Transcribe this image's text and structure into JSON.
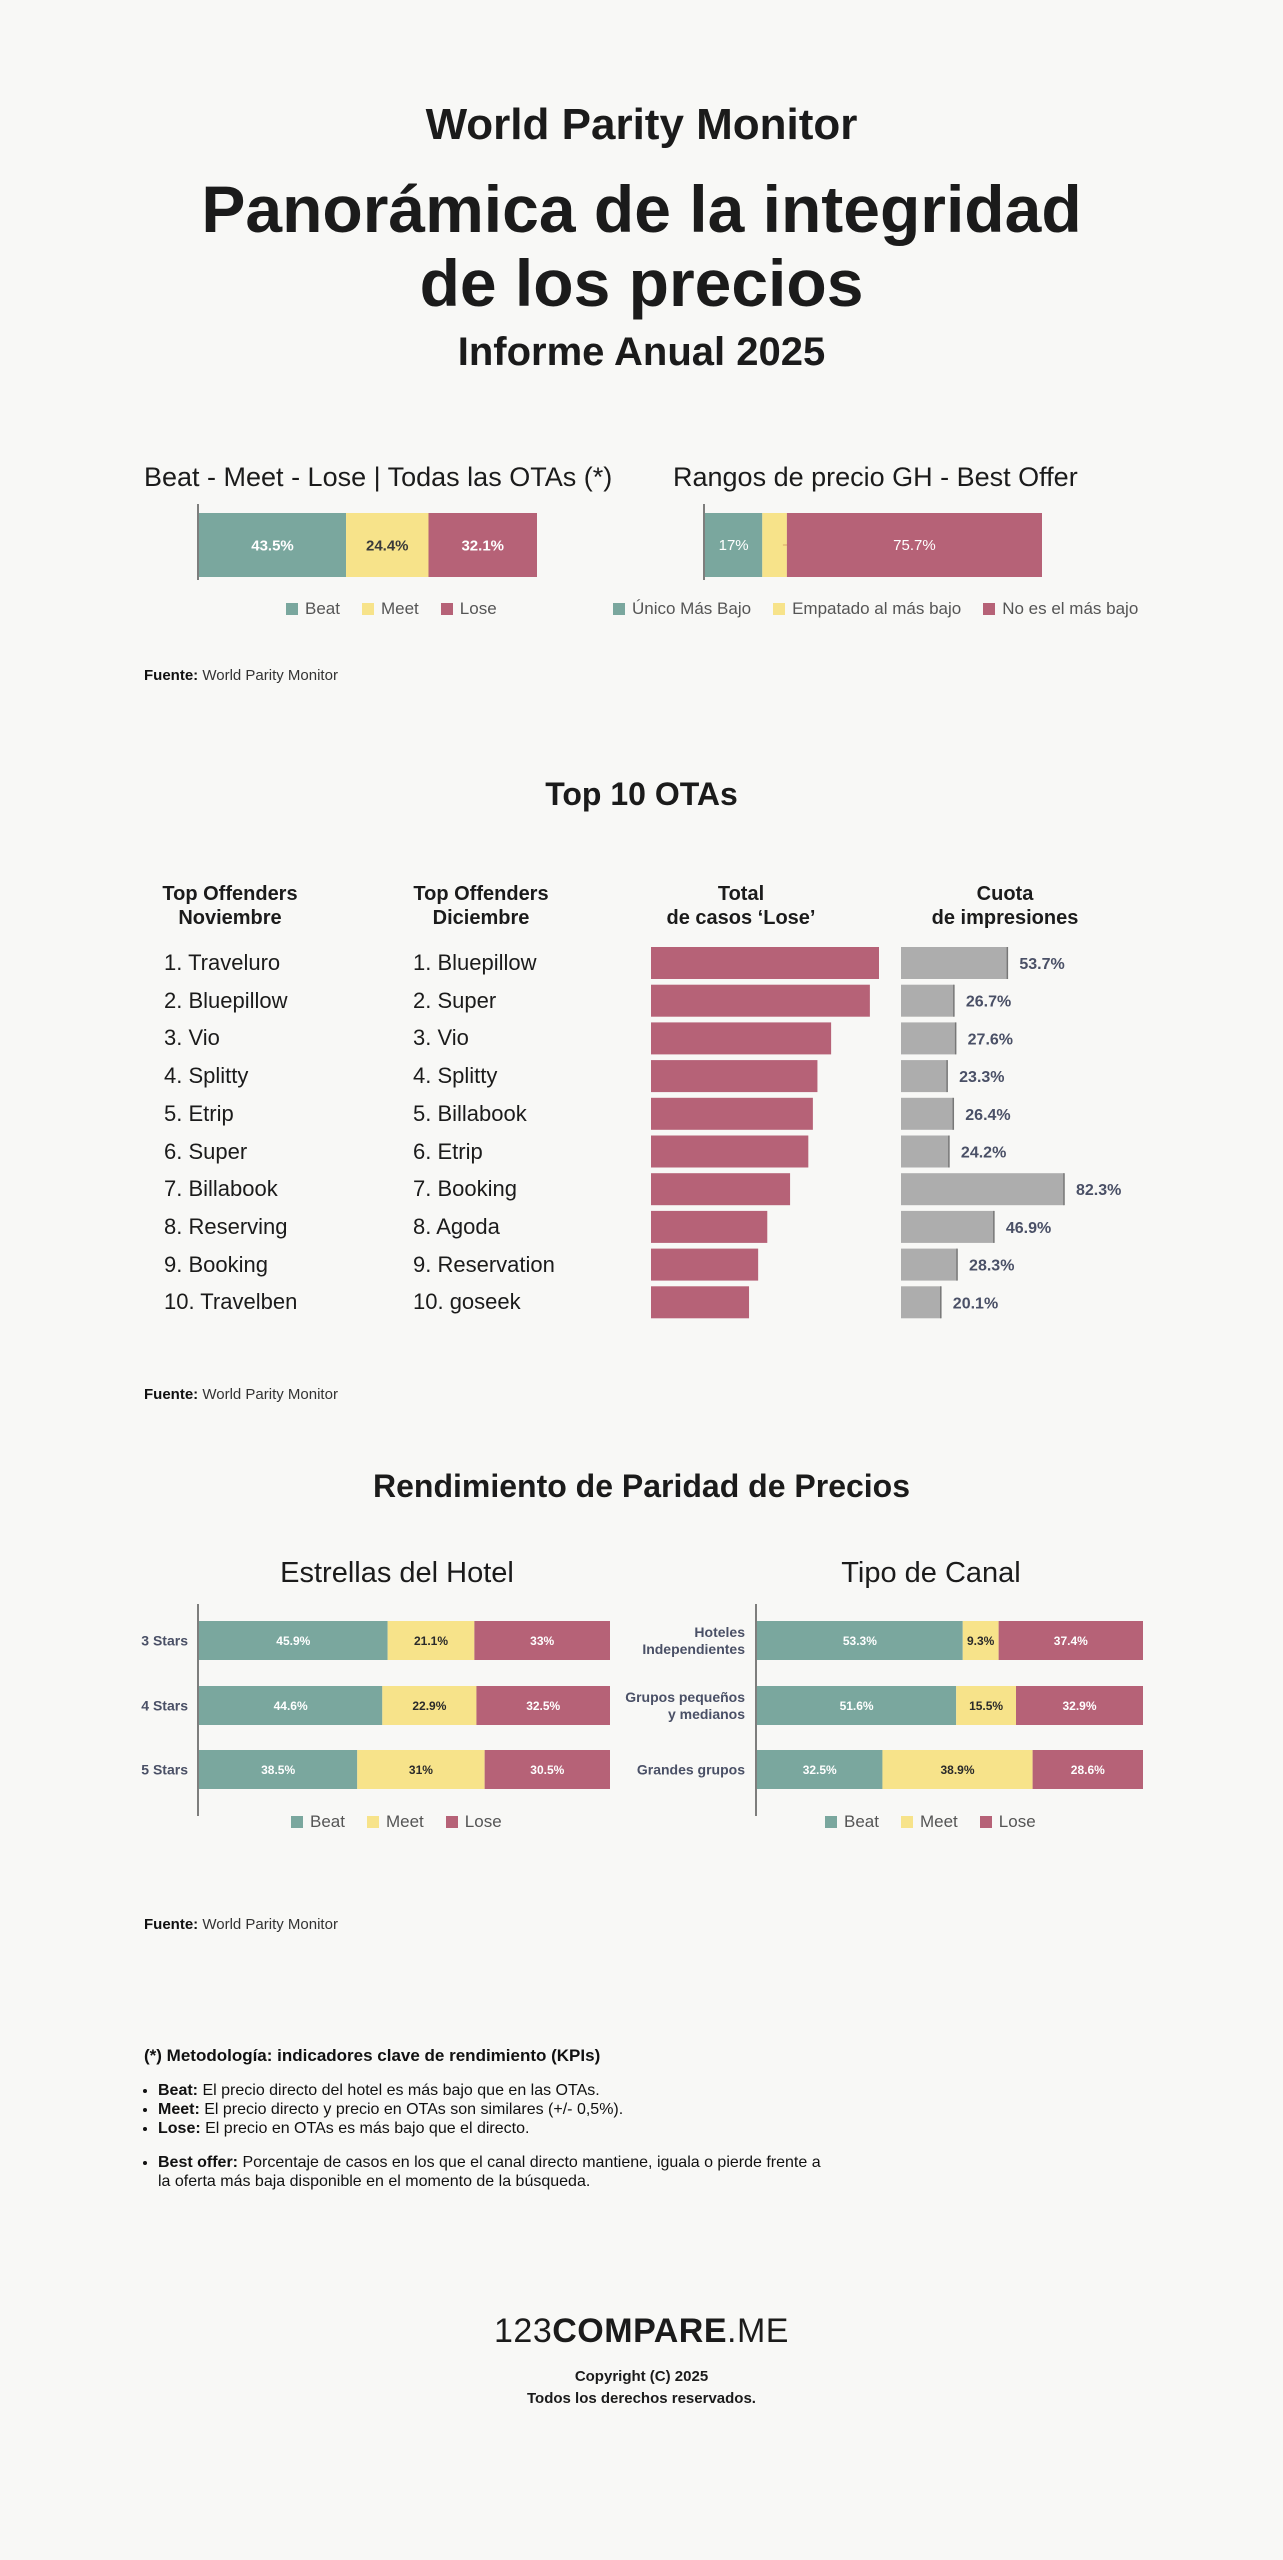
{
  "header": {
    "supertitle": "World Parity Monitor",
    "title_line1": "Panorámica de la integridad",
    "title_line2": "de los precios",
    "subtitle": "Informe Anual 2025"
  },
  "colors": {
    "beat": "#7aa79e",
    "meet": "#f7e38a",
    "lose": "#b66277",
    "share": "#adadad"
  },
  "section1": {
    "left_title": "Beat - Meet - Lose |  Todas las OTAs (*)",
    "right_title": "Rangos de precio GH - Best Offer",
    "source_label": "Fuente:",
    "source_text": "World Parity Monitor"
  },
  "section2": {
    "title": "Top 10 OTAs",
    "head_nov_1": "Top Offenders",
    "head_nov_2": "Noviembre",
    "head_dic_1": "Top Offenders",
    "head_dic_2": "Diciembre",
    "head_total_1": "Total",
    "head_total_2": "de casos ‘Lose’",
    "head_share_1": "Cuota",
    "head_share_2": "de impresiones",
    "november": [
      "1. Traveluro",
      "2. Bluepillow",
      "3. Vio",
      "4. Splitty",
      "5. Etrip",
      "6. Super",
      "7. Billabook",
      "8. Reserving",
      "9. Booking",
      "10. Travelben"
    ],
    "december": [
      "1. Bluepillow",
      "2. Super",
      "3. Vio",
      "4. Splitty",
      "5. Billabook",
      "6. Etrip",
      "7. Booking",
      "8. Agoda",
      "9. Reservation",
      "10. goseek"
    ],
    "source_label": "Fuente:",
    "source_text": "World Parity Monitor"
  },
  "section3": {
    "title": "Rendimiento de Paridad de Precios",
    "left_title": "Estrellas del Hotel",
    "right_title": "Tipo de Canal",
    "source_label": "Fuente:",
    "source_text": "World Parity Monitor"
  },
  "methodology": {
    "title": "(*) Metodología: indicadores clave de rendimiento (KPIs)",
    "beat_term": "Beat:",
    "beat_text": " El precio directo del hotel es más bajo que en las OTAs.",
    "meet_term": "Meet:",
    "meet_text": " El precio directo y precio en OTAs son similares (+/- 0,5%).",
    "lose_term": "Lose:",
    "lose_text": " El precio en OTAs es más bajo que el directo.",
    "best_term": "Best offer:",
    "best_text": " Porcentaje de casos en los que el canal directo mantiene, iguala o pierde frente a la oferta más baja disponible en el momento de la búsqueda."
  },
  "footer": {
    "brand_a": "123",
    "brand_b": "COMPARE",
    "brand_c": ".ME",
    "copyright": "Copyright (C) 2025",
    "rights": "Todos los derechos reservados."
  },
  "chart_data": [
    {
      "id": "bml-all",
      "type": "bar",
      "stacked": true,
      "orientation": "horizontal",
      "categories": [
        ""
      ],
      "series": [
        {
          "name": "Beat",
          "values": [
            43.5
          ],
          "labels": [
            "43.5%"
          ]
        },
        {
          "name": "Meet",
          "values": [
            24.4
          ],
          "labels": [
            "24.4%"
          ]
        },
        {
          "name": "Lose",
          "values": [
            32.1
          ],
          "labels": [
            "32.1%"
          ]
        }
      ],
      "legend": "bottom"
    },
    {
      "id": "best-offer",
      "type": "bar",
      "stacked": true,
      "orientation": "horizontal",
      "categories": [
        ""
      ],
      "series": [
        {
          "name": "Único Más Bajo",
          "values": [
            17
          ],
          "labels": [
            "17%"
          ]
        },
        {
          "name": "Empatado al más bajo",
          "values": [
            7.3
          ],
          "labels": [
            "7.3%"
          ]
        },
        {
          "name": "No es el más bajo",
          "values": [
            75.7
          ],
          "labels": [
            "75.7%"
          ]
        }
      ],
      "legend": "bottom"
    },
    {
      "id": "total-lose",
      "type": "bar",
      "orientation": "horizontal",
      "categories": [
        "1",
        "2",
        "3",
        "4",
        "5",
        "6",
        "7",
        "8",
        "9",
        "10"
      ],
      "values": [
        100,
        96,
        79,
        73,
        71,
        69,
        61,
        51,
        47,
        43
      ],
      "value_note": "relative bar lengths, no values printed"
    },
    {
      "id": "share-impressions",
      "type": "bar",
      "orientation": "horizontal",
      "categories": [
        "1",
        "2",
        "3",
        "4",
        "5",
        "6",
        "7",
        "8",
        "9",
        "10"
      ],
      "values": [
        53.7,
        26.7,
        27.6,
        23.3,
        26.4,
        24.2,
        82.3,
        46.9,
        28.3,
        20.1
      ],
      "labels": [
        "53.7%",
        "26.7%",
        "27.6%",
        "23.3%",
        "26.4%",
        "24.2%",
        "82.3%",
        "46.9%",
        "28.3%",
        "20.1%"
      ]
    },
    {
      "id": "stars",
      "type": "bar",
      "stacked": true,
      "orientation": "horizontal",
      "categories": [
        "3 Stars",
        "4 Stars",
        "5 Stars"
      ],
      "series": [
        {
          "name": "Beat",
          "values": [
            45.9,
            44.6,
            38.5
          ],
          "labels": [
            "45.9%",
            "44.6%",
            "38.5%"
          ]
        },
        {
          "name": "Meet",
          "values": [
            21.1,
            22.9,
            31
          ],
          "labels": [
            "21.1%",
            "22.9%",
            "31%"
          ]
        },
        {
          "name": "Lose",
          "values": [
            33,
            32.5,
            30.5
          ],
          "labels": [
            "33%",
            "32.5%",
            "30.5%"
          ]
        }
      ],
      "legend": "bottom"
    },
    {
      "id": "channel",
      "type": "bar",
      "stacked": true,
      "orientation": "horizontal",
      "categories": [
        "Hoteles Independientes",
        "Grupos pequeños y medianos",
        "Grandes grupos"
      ],
      "category_lines": [
        [
          "Hoteles",
          "Independientes"
        ],
        [
          "Grupos pequeños",
          "y medianos"
        ],
        [
          "Grandes grupos"
        ]
      ],
      "series": [
        {
          "name": "Beat",
          "values": [
            53.3,
            51.6,
            32.5
          ],
          "labels": [
            "53.3%",
            "51.6%",
            "32.5%"
          ]
        },
        {
          "name": "Meet",
          "values": [
            9.3,
            15.5,
            38.9
          ],
          "labels": [
            "9.3%",
            "15.5%",
            "38.9%"
          ]
        },
        {
          "name": "Lose",
          "values": [
            37.4,
            32.9,
            28.6
          ],
          "labels": [
            "37.4%",
            "32.9%",
            "28.6%"
          ]
        }
      ],
      "legend": "bottom"
    }
  ]
}
